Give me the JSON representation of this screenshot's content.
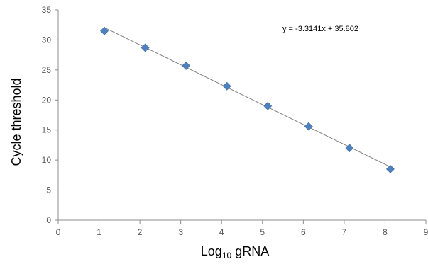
{
  "chart_data": {
    "type": "scatter",
    "title": "",
    "xlabel": "Log",
    "xlabel_sub": "10",
    "xlabel_suffix": " gRNA",
    "ylabel": "Cycle threshold",
    "xlim": [
      0,
      9
    ],
    "ylim": [
      0,
      35
    ],
    "xticks": [
      "0",
      "1",
      "2",
      "3",
      "4",
      "5",
      "6",
      "7",
      "8",
      "9"
    ],
    "yticks": [
      "0",
      "5",
      "10",
      "15",
      "20",
      "25",
      "30",
      "35"
    ],
    "grid": false,
    "legend": "none",
    "series": [
      {
        "marker": "diamond",
        "color": "#4f81bd",
        "x": [
          1.13,
          2.13,
          3.13,
          4.13,
          5.13,
          6.13,
          7.13,
          8.13
        ],
        "y": [
          31.5,
          28.7,
          25.7,
          22.3,
          19.0,
          15.6,
          12.0,
          8.5
        ]
      }
    ],
    "trendline": {
      "type": "linear",
      "slope": -3.3141,
      "intercept": 35.802,
      "x_from": 1.13,
      "x_to": 8.13,
      "color": "#808080"
    },
    "annotation": "y = -3.3141x + 35.802"
  }
}
